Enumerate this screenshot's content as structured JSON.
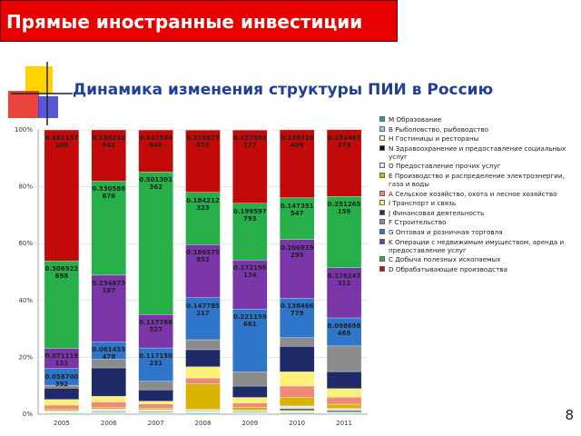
{
  "header": {
    "title": "Прямые иностранные инвестиции"
  },
  "page_number": "8",
  "chart_data": {
    "type": "stacked_bar",
    "title": "Динамика изменения структуры ПИИ в Россию",
    "categories": [
      "2005",
      "2006",
      "2007",
      "2008",
      "2009",
      "2010",
      "2011"
    ],
    "ylim": [
      0,
      1
    ],
    "yticks": [
      {
        "value": 0,
        "label": "0%"
      },
      {
        "value": 0.2,
        "label": "20%"
      },
      {
        "value": 0.4,
        "label": "40%"
      },
      {
        "value": 0.6,
        "label": "60%"
      },
      {
        "value": 0.8,
        "label": "80%"
      },
      {
        "value": 1,
        "label": "100%"
      }
    ],
    "grid": true,
    "legend": "right",
    "series": [
      {
        "name": "M Образование",
        "color": "#1aa39a",
        "values": [
          0.002,
          0.002,
          0.002,
          0.003,
          0.002,
          0.003,
          0.002
        ]
      },
      {
        "name": "B Рыболовство, рыбоводство",
        "color": "#9ec8e8",
        "values": [
          0.002,
          0.002,
          0.002,
          0.002,
          0.001,
          0.003,
          0.002
        ]
      },
      {
        "name": "H Гостиницы и рестораны",
        "color": "#fff3b0",
        "values": [
          0.003,
          0.004,
          0.004,
          0.005,
          0.003,
          0.008,
          0.004
        ]
      },
      {
        "name": "N Здравоохранение и предоставление социальных услуг",
        "color": "#111111",
        "values": [
          0,
          0.002,
          0.002,
          0.002,
          0.002,
          0.005,
          0.004
        ]
      },
      {
        "name": "O Предоставление прочих услуг",
        "color": "#dbe8f7",
        "values": [
          0.005,
          0.008,
          0.006,
          0.005,
          0.006,
          0.01,
          0.008
        ]
      },
      {
        "name": "E Производство и распределение электроэнергии, газа и воды",
        "color": "#d9b300",
        "values": [
          0.005,
          0.005,
          0.005,
          0.09,
          0.01,
          0.03,
          0.015
        ]
      },
      {
        "name": "A Сельское хозяйство, охота и лесное хозяйство",
        "color": "#f08a78",
        "values": [
          0.015,
          0.02,
          0.015,
          0.02,
          0.015,
          0.04,
          0.025
        ]
      },
      {
        "name": "I Транспорт и связь",
        "color": "#fff07a",
        "values": [
          0.02,
          0.02,
          0.01,
          0.04,
          0.02,
          0.05,
          0.03
        ]
      },
      {
        "name": "J Финансовая деятельность",
        "color": "#1f2a66",
        "values": [
          0.04,
          0.1,
          0.04,
          0.06,
          0.04,
          0.09,
          0.06
        ]
      },
      {
        "name": "F Строительство",
        "color": "#8c8c8c",
        "values": [
          0.01,
          0.03,
          0.03,
          0.035,
          0.05,
          0.03,
          0.09
        ]
      },
      {
        "name": "G Оптовая и розничная торговля",
        "color": "#2f75c9",
        "labels": true,
        "values": [
          0.058700392,
          0.061453478,
          0.117150231,
          0.147785217,
          0.221159661,
          0.138466779,
          0.098698469
        ]
      },
      {
        "name": "K Операции с недвижимым имуществом, аренда и предоставление услуг",
        "color": "#7a35a8",
        "labels": true,
        "values": [
          0.071119131,
          0.234673187,
          0.117768527,
          0.186575852,
          0.172196134,
          0.206619295,
          0.176247312
        ]
      },
      {
        "name": "C Добыча полезных ископаемых",
        "color": "#27b04a",
        "labels": true,
        "values": [
          0.306922698,
          0.330588676,
          0.501301362,
          0.184212323,
          0.199597793,
          0.147351547,
          0.251265159
        ]
      },
      {
        "name": "D Обрабатывающие производства",
        "color": "#c20a0a",
        "labels": true,
        "values": [
          0.461157108,
          0.180252942,
          0.147544646,
          0.218973573,
          0.257593177,
          0.238716409,
          0.234467376
        ]
      }
    ]
  }
}
